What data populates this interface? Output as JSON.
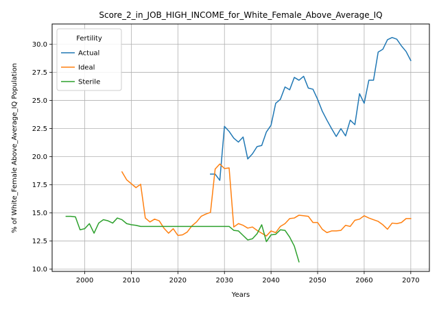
{
  "chart_data": {
    "type": "line",
    "title": "Score_2_in_JOB_HIGH_INCOME_for_White_Female_Above_Average_IQ",
    "xlabel": "Years",
    "ylabel": "% of White_Female Above_Average_IQ Population",
    "xlim": [
      1993,
      2074
    ],
    "ylim": [
      9.8,
      31.8
    ],
    "xticks": [
      2000,
      2010,
      2020,
      2030,
      2040,
      2050,
      2060,
      2070
    ],
    "yticks": [
      10.0,
      12.5,
      15.0,
      17.5,
      20.0,
      22.5,
      25.0,
      27.5,
      30.0
    ],
    "xtick_labels": [
      "2000",
      "2010",
      "2020",
      "2030",
      "2040",
      "2050",
      "2060",
      "2070"
    ],
    "ytick_labels": [
      "10.0",
      "12.5",
      "15.0",
      "17.5",
      "20.0",
      "22.5",
      "25.0",
      "27.5",
      "30.0"
    ],
    "grid": true,
    "legend": {
      "title": "Fertility",
      "position": "top-left"
    },
    "series": [
      {
        "name": "Actual",
        "color": "#1f77b4",
        "x": [
          2027,
          2028,
          2029,
          2030,
          2031,
          2032,
          2033,
          2034,
          2035,
          2036,
          2037,
          2038,
          2039,
          2040,
          2041,
          2042,
          2043,
          2044,
          2045,
          2046,
          2047,
          2048,
          2049,
          2050,
          2051,
          2052,
          2053,
          2054,
          2055,
          2056,
          2057,
          2058,
          2059,
          2060,
          2061,
          2062,
          2063,
          2064,
          2065,
          2066,
          2067,
          2068,
          2069,
          2070
        ],
        "y": [
          18.45,
          18.45,
          17.9,
          22.7,
          22.25,
          21.65,
          21.3,
          21.75,
          19.8,
          20.25,
          20.9,
          21.0,
          22.2,
          22.8,
          24.75,
          25.1,
          26.2,
          25.95,
          27.05,
          26.8,
          27.15,
          26.1,
          26.0,
          25.1,
          24.05,
          23.25,
          22.5,
          21.8,
          22.5,
          21.85,
          23.25,
          22.85,
          25.6,
          24.75,
          26.8,
          26.8,
          29.3,
          29.55,
          30.4,
          30.6,
          30.45,
          29.85,
          29.35,
          28.55
        ]
      },
      {
        "name": "Ideal",
        "color": "#ff7f0e",
        "x": [
          2008,
          2009,
          2010,
          2011,
          2012,
          2013,
          2014,
          2015,
          2016,
          2017,
          2018,
          2019,
          2020,
          2021,
          2022,
          2023,
          2024,
          2025,
          2026,
          2027,
          2028,
          2029,
          2030,
          2031,
          2032,
          2033,
          2034,
          2035,
          2036,
          2037,
          2038,
          2039,
          2040,
          2041,
          2042,
          2043,
          2044,
          2045,
          2046,
          2047,
          2048,
          2049,
          2050,
          2051,
          2052,
          2053,
          2054,
          2055,
          2056,
          2057,
          2058,
          2059,
          2060,
          2061,
          2062,
          2063,
          2064,
          2065,
          2066,
          2067,
          2068,
          2069,
          2070
        ],
        "y": [
          18.65,
          17.95,
          17.6,
          17.25,
          17.55,
          14.55,
          14.2,
          14.45,
          14.3,
          13.65,
          13.2,
          13.6,
          13.0,
          13.05,
          13.3,
          13.85,
          14.2,
          14.7,
          14.9,
          15.05,
          18.9,
          19.35,
          18.95,
          19.0,
          13.75,
          14.05,
          13.9,
          13.65,
          13.75,
          13.45,
          13.2,
          12.95,
          13.4,
          13.25,
          13.8,
          14.05,
          14.5,
          14.55,
          14.8,
          14.75,
          14.7,
          14.15,
          14.15,
          13.55,
          13.25,
          13.4,
          13.4,
          13.45,
          13.9,
          13.8,
          14.35,
          14.45,
          14.75,
          14.55,
          14.4,
          14.25,
          13.95,
          13.55,
          14.1,
          14.05,
          14.15,
          14.5,
          14.5
        ]
      },
      {
        "name": "Sterile",
        "color": "#2ca02c",
        "x": [
          1996,
          1997,
          1998,
          1999,
          2000,
          2001,
          2002,
          2003,
          2004,
          2005,
          2006,
          2007,
          2008,
          2009,
          2010,
          2011,
          2012,
          2013,
          2014,
          2015,
          2016,
          2017,
          2018,
          2019,
          2020,
          2021,
          2022,
          2023,
          2024,
          2025,
          2026,
          2027,
          2028,
          2029,
          2030,
          2031,
          2032,
          2033,
          2034,
          2035,
          2036,
          2037,
          2038,
          2039,
          2040,
          2041,
          2042,
          2043,
          2044,
          2045,
          2046
        ],
        "y": [
          14.7,
          14.7,
          14.65,
          13.5,
          13.6,
          14.05,
          13.2,
          14.1,
          14.4,
          14.3,
          14.1,
          14.55,
          14.4,
          14.05,
          13.95,
          13.9,
          13.8,
          13.8,
          13.8,
          13.8,
          13.8,
          13.8,
          13.8,
          13.8,
          13.8,
          13.8,
          13.8,
          13.8,
          13.8,
          13.8,
          13.8,
          13.8,
          13.8,
          13.8,
          13.8,
          13.8,
          13.45,
          13.4,
          13.0,
          12.6,
          12.7,
          13.15,
          13.95,
          12.45,
          13.05,
          13.1,
          13.5,
          13.45,
          12.85,
          12.05,
          10.65
        ]
      }
    ]
  }
}
